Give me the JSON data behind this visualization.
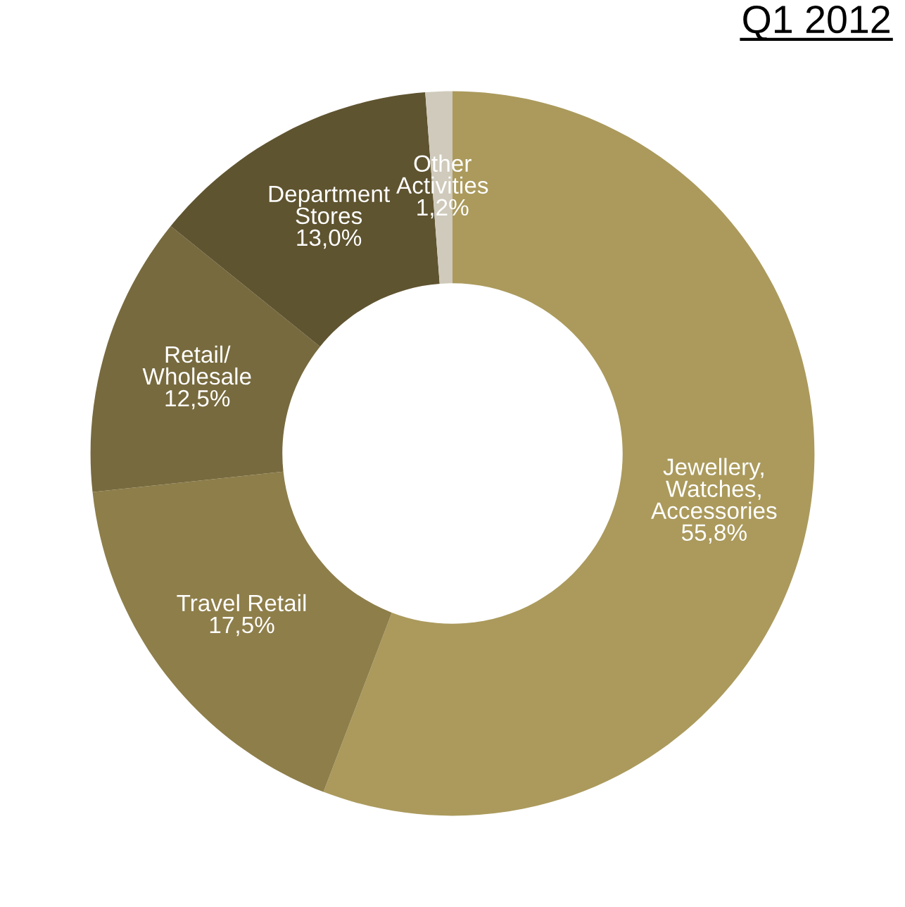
{
  "chart_data": {
    "type": "donut",
    "title": "Q1 2012",
    "categories": [
      "Jewellery,\nWatches,\nAccessories",
      "Travel Retail",
      "Retail/\nWholesale",
      "Department\nStores",
      "Other\nActivities"
    ],
    "values": [
      55.8,
      17.5,
      12.5,
      13.0,
      1.2
    ],
    "value_labels": [
      "55,8%",
      "17,5%",
      "12,5%",
      "13,0%",
      "1,2%"
    ],
    "colors": [
      "#ab9a5c",
      "#8e7e4a",
      "#776a3e",
      "#5f5430",
      "#cfcabb"
    ],
    "legend": false
  }
}
